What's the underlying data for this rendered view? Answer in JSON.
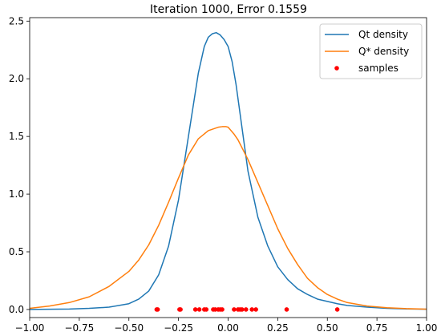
{
  "chart_data": {
    "type": "line",
    "title": "Iteration 1000, Error 0.1559",
    "xlabel": "",
    "ylabel": "",
    "xlim": [
      -1.0,
      1.0
    ],
    "ylim": [
      -0.07,
      2.53
    ],
    "xticks": [
      -1.0,
      -0.75,
      -0.5,
      -0.25,
      0.0,
      0.25,
      0.5,
      0.75,
      1.0
    ],
    "xtick_labels": [
      "−1.00",
      "−0.75",
      "−0.50",
      "−0.25",
      "0.00",
      "0.25",
      "0.50",
      "0.75",
      "1.00"
    ],
    "yticks": [
      0.0,
      0.5,
      1.0,
      1.5,
      2.0,
      2.5
    ],
    "ytick_labels": [
      "0.0",
      "0.5",
      "1.0",
      "1.5",
      "2.0",
      "2.5"
    ],
    "grid": false,
    "legend_position": "top-right",
    "series": [
      {
        "name": "Qt density",
        "kind": "line",
        "color": "#1f77b4",
        "x": [
          -1.0,
          -0.9,
          -0.8,
          -0.7,
          -0.6,
          -0.5,
          -0.45,
          -0.4,
          -0.35,
          -0.3,
          -0.25,
          -0.2,
          -0.15,
          -0.12,
          -0.1,
          -0.08,
          -0.06,
          -0.04,
          -0.02,
          0.0,
          0.02,
          0.04,
          0.06,
          0.08,
          0.1,
          0.15,
          0.2,
          0.25,
          0.3,
          0.35,
          0.4,
          0.45,
          0.5,
          0.55,
          0.6,
          0.7,
          0.8,
          0.9,
          1.0
        ],
        "y": [
          0.0,
          0.002,
          0.004,
          0.01,
          0.02,
          0.05,
          0.09,
          0.16,
          0.3,
          0.55,
          0.95,
          1.5,
          2.05,
          2.28,
          2.36,
          2.39,
          2.4,
          2.38,
          2.34,
          2.28,
          2.15,
          1.95,
          1.7,
          1.45,
          1.2,
          0.8,
          0.55,
          0.37,
          0.26,
          0.18,
          0.13,
          0.09,
          0.07,
          0.05,
          0.035,
          0.02,
          0.01,
          0.005,
          0.002
        ]
      },
      {
        "name": "Q* density",
        "kind": "line",
        "color": "#ff7f0e",
        "x": [
          -1.0,
          -0.9,
          -0.8,
          -0.7,
          -0.6,
          -0.5,
          -0.45,
          -0.4,
          -0.35,
          -0.3,
          -0.25,
          -0.2,
          -0.15,
          -0.1,
          -0.05,
          -0.03,
          -0.01,
          0.0,
          0.01,
          0.03,
          0.05,
          0.1,
          0.15,
          0.2,
          0.25,
          0.3,
          0.35,
          0.4,
          0.45,
          0.5,
          0.55,
          0.6,
          0.7,
          0.8,
          0.9,
          1.0
        ],
        "y": [
          0.01,
          0.03,
          0.06,
          0.11,
          0.2,
          0.33,
          0.43,
          0.56,
          0.73,
          0.93,
          1.14,
          1.34,
          1.48,
          1.55,
          1.58,
          1.585,
          1.585,
          1.58,
          1.56,
          1.52,
          1.47,
          1.3,
          1.1,
          0.9,
          0.7,
          0.53,
          0.39,
          0.27,
          0.19,
          0.13,
          0.09,
          0.06,
          0.03,
          0.015,
          0.007,
          0.003
        ]
      },
      {
        "name": "samples",
        "kind": "scatter",
        "color": "#ff0000",
        "x": [
          -0.36,
          -0.355,
          -0.245,
          -0.24,
          -0.165,
          -0.145,
          -0.12,
          -0.11,
          -0.075,
          -0.065,
          -0.05,
          -0.04,
          -0.03,
          0.03,
          0.05,
          0.06,
          0.07,
          0.09,
          0.12,
          0.14,
          0.295,
          0.55
        ],
        "y": [
          0,
          0,
          0,
          0,
          0,
          0,
          0,
          0,
          0,
          0,
          0,
          0,
          0,
          0,
          0,
          0,
          0,
          0,
          0,
          0,
          0,
          0
        ]
      }
    ]
  }
}
